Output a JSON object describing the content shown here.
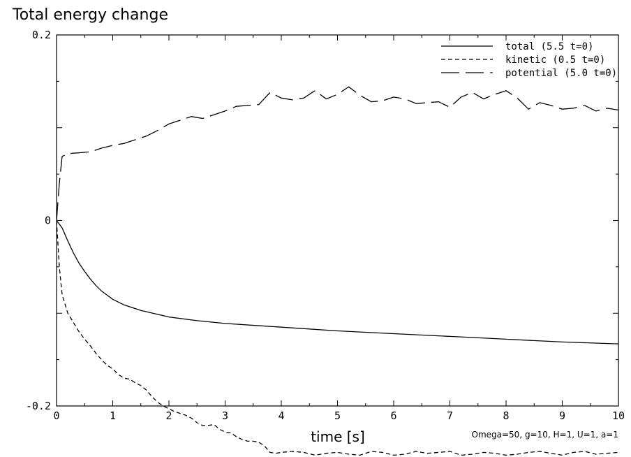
{
  "chart_data": {
    "type": "line",
    "title": "Total energy change",
    "xlabel": "time [s]",
    "ylabel": "",
    "xlim": [
      0,
      10
    ],
    "ylim": [
      -0.2,
      0.2
    ],
    "xticks": [
      0,
      1,
      2,
      3,
      4,
      5,
      6,
      7,
      8,
      9,
      10
    ],
    "xtick_labels": [
      "0",
      "1",
      "2",
      "3",
      "4",
      "5",
      "6",
      "7",
      "8",
      "9",
      "10"
    ],
    "yticks": [
      -0.2,
      0,
      0.2
    ],
    "ytick_labels": [
      "-0.2",
      "0",
      "0.2"
    ],
    "annotation": "Omega=50, g=10, H=1, U=1, a=1",
    "legend_position": "top-right",
    "series": [
      {
        "name": "total (5.5 t=0)",
        "style": "solid",
        "x": [
          0,
          0.1,
          0.2,
          0.3,
          0.4,
          0.5,
          0.6,
          0.7,
          0.8,
          1.0,
          1.2,
          1.5,
          2.0,
          2.5,
          3.0,
          4.0,
          5.0,
          6.0,
          7.0,
          8.0,
          9.0,
          10.0
        ],
        "y": [
          0,
          -0.008,
          -0.022,
          -0.035,
          -0.046,
          -0.055,
          -0.063,
          -0.07,
          -0.076,
          -0.085,
          -0.091,
          -0.097,
          -0.104,
          -0.108,
          -0.111,
          -0.115,
          -0.119,
          -0.122,
          -0.125,
          -0.128,
          -0.131,
          -0.133
        ]
      },
      {
        "name": "kinetic (0.5 t=0)",
        "style": "dashed",
        "x": [
          0,
          0.05,
          0.1,
          0.15,
          0.2,
          0.3,
          0.4,
          0.5,
          0.6,
          0.7,
          0.8,
          0.9,
          1.0,
          1.1,
          1.2,
          1.3,
          1.4,
          1.5,
          1.6,
          1.7,
          1.8,
          1.9,
          2.0,
          2.1,
          2.2,
          2.3,
          2.4,
          2.5,
          2.6,
          2.7,
          2.8,
          2.9,
          3.0,
          3.1,
          3.2,
          3.3,
          3.4,
          3.5,
          3.6,
          3.7,
          3.8,
          3.9,
          4.0,
          4.2,
          4.4,
          4.6,
          4.8,
          5.0,
          5.2,
          5.4,
          5.6,
          5.8,
          6.0,
          6.2,
          6.4,
          6.6,
          6.8,
          7.0,
          7.2,
          7.4,
          7.6,
          7.8,
          8.0,
          8.2,
          8.4,
          8.6,
          8.8,
          9.0,
          9.2,
          9.4,
          9.6,
          9.8,
          10.0
        ],
        "y": [
          0,
          -0.05,
          -0.08,
          -0.09,
          -0.1,
          -0.11,
          -0.12,
          -0.128,
          -0.135,
          -0.143,
          -0.15,
          -0.156,
          -0.16,
          -0.166,
          -0.17,
          -0.171,
          -0.175,
          -0.178,
          -0.183,
          -0.19,
          -0.196,
          -0.2,
          -0.203,
          -0.206,
          -0.208,
          -0.21,
          -0.213,
          -0.218,
          -0.221,
          -0.221,
          -0.22,
          -0.225,
          -0.228,
          -0.229,
          -0.233,
          -0.236,
          -0.238,
          -0.238,
          -0.239,
          -0.243,
          -0.25,
          -0.251,
          -0.25,
          -0.249,
          -0.25,
          -0.253,
          -0.251,
          -0.25,
          -0.252,
          -0.253,
          -0.249,
          -0.25,
          -0.253,
          -0.252,
          -0.249,
          -0.251,
          -0.25,
          -0.249,
          -0.253,
          -0.252,
          -0.25,
          -0.251,
          -0.253,
          -0.252,
          -0.25,
          -0.249,
          -0.251,
          -0.253,
          -0.25,
          -0.249,
          -0.252,
          -0.251,
          -0.25
        ]
      },
      {
        "name": "potential (5.0 t=0)",
        "style": "longdash",
        "x": [
          0,
          0.05,
          0.1,
          0.2,
          0.4,
          0.6,
          0.8,
          1.0,
          1.2,
          1.4,
          1.6,
          1.8,
          2.0,
          2.2,
          2.4,
          2.6,
          2.8,
          3.0,
          3.2,
          3.4,
          3.6,
          3.8,
          4.0,
          4.2,
          4.4,
          4.6,
          4.8,
          5.0,
          5.2,
          5.4,
          5.6,
          5.8,
          6.0,
          6.2,
          6.4,
          6.6,
          6.8,
          7.0,
          7.2,
          7.4,
          7.6,
          7.8,
          8.0,
          8.2,
          8.4,
          8.6,
          8.8,
          9.0,
          9.2,
          9.4,
          9.6,
          9.8,
          10.0
        ],
        "y": [
          0,
          0.04,
          0.069,
          0.072,
          0.073,
          0.074,
          0.078,
          0.081,
          0.083,
          0.087,
          0.091,
          0.097,
          0.104,
          0.108,
          0.112,
          0.11,
          0.114,
          0.118,
          0.123,
          0.124,
          0.125,
          0.138,
          0.132,
          0.13,
          0.132,
          0.14,
          0.131,
          0.136,
          0.144,
          0.135,
          0.128,
          0.129,
          0.133,
          0.131,
          0.126,
          0.127,
          0.128,
          0.122,
          0.133,
          0.138,
          0.131,
          0.136,
          0.14,
          0.132,
          0.12,
          0.127,
          0.124,
          0.12,
          0.121,
          0.124,
          0.118,
          0.121,
          0.119
        ]
      }
    ]
  }
}
